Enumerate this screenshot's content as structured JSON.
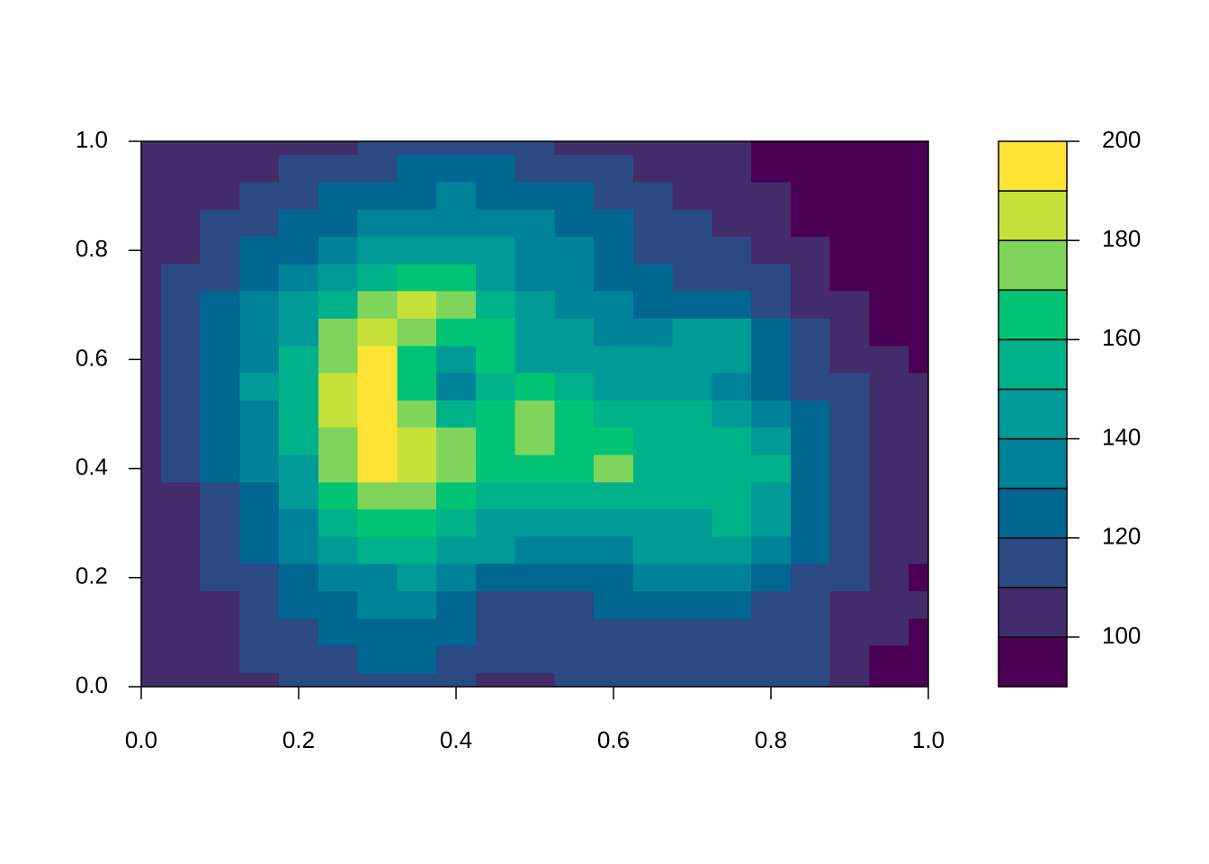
{
  "chart_data": {
    "type": "filled-contour",
    "x": [
      0,
      0.05,
      0.1,
      0.15,
      0.2,
      0.25,
      0.3,
      0.35,
      0.4,
      0.45,
      0.5,
      0.55,
      0.6,
      0.65,
      0.7,
      0.75,
      0.8,
      0.85,
      0.9,
      0.95,
      1
    ],
    "y": [
      1,
      0.95,
      0.9,
      0.85,
      0.8,
      0.75,
      0.7,
      0.65,
      0.6,
      0.55,
      0.5,
      0.45,
      0.4,
      0.35,
      0.3,
      0.25,
      0.2,
      0.15,
      0.1,
      0.05,
      0
    ],
    "z": [
      [
        105,
        105,
        105,
        105,
        105,
        108,
        112,
        115,
        118,
        115,
        112,
        105,
        105,
        105,
        105,
        105,
        95,
        95,
        95,
        95,
        95
      ],
      [
        105,
        105,
        105,
        105,
        115,
        115,
        118,
        122,
        125,
        122,
        118,
        115,
        112,
        108,
        105,
        105,
        95,
        95,
        95,
        95,
        95
      ],
      [
        105,
        105,
        105,
        112,
        118,
        122,
        125,
        128,
        130,
        128,
        125,
        120,
        115,
        112,
        108,
        105,
        105,
        95,
        95,
        95,
        95
      ],
      [
        105,
        105,
        112,
        118,
        124,
        128,
        132,
        135,
        135,
        134,
        130,
        126,
        120,
        115,
        112,
        108,
        105,
        95,
        95,
        95,
        95
      ],
      [
        105,
        108,
        115,
        122,
        128,
        134,
        140,
        145,
        145,
        140,
        135,
        130,
        125,
        118,
        115,
        112,
        108,
        102,
        95,
        95,
        95
      ],
      [
        105,
        112,
        118,
        126,
        134,
        145,
        155,
        165,
        162,
        145,
        138,
        135,
        128,
        122,
        118,
        115,
        112,
        105,
        95,
        95,
        95
      ],
      [
        105,
        115,
        122,
        130,
        140,
        155,
        175,
        185,
        178,
        155,
        140,
        138,
        130,
        125,
        122,
        120,
        115,
        108,
        100,
        95,
        95
      ],
      [
        108,
        115,
        125,
        135,
        148,
        170,
        185,
        175,
        165,
        160,
        145,
        140,
        135,
        135,
        140,
        140,
        125,
        115,
        105,
        95,
        95
      ],
      [
        108,
        118,
        128,
        138,
        155,
        178,
        195,
        165,
        145,
        160,
        145,
        142,
        140,
        140,
        145,
        140,
        128,
        118,
        108,
        100,
        95
      ],
      [
        105,
        118,
        128,
        140,
        158,
        180,
        195,
        165,
        138,
        150,
        162,
        150,
        145,
        145,
        142,
        138,
        128,
        118,
        112,
        105,
        100
      ],
      [
        105,
        115,
        128,
        138,
        155,
        182,
        195,
        175,
        155,
        165,
        172,
        162,
        158,
        155,
        152,
        148,
        135,
        122,
        112,
        105,
        105
      ],
      [
        102,
        112,
        125,
        135,
        152,
        178,
        192,
        182,
        172,
        168,
        175,
        165,
        165,
        155,
        152,
        150,
        140,
        125,
        112,
        105,
        105
      ],
      [
        100,
        110,
        122,
        132,
        148,
        172,
        190,
        185,
        172,
        165,
        165,
        160,
        172,
        155,
        155,
        155,
        152,
        128,
        112,
        105,
        105
      ],
      [
        100,
        108,
        118,
        128,
        142,
        162,
        172,
        178,
        165,
        158,
        155,
        152,
        152,
        152,
        152,
        152,
        148,
        125,
        112,
        105,
        105
      ],
      [
        100,
        105,
        115,
        125,
        135,
        152,
        162,
        165,
        158,
        148,
        145,
        145,
        145,
        145,
        148,
        150,
        145,
        125,
        112,
        105,
        105
      ],
      [
        100,
        105,
        112,
        122,
        130,
        140,
        150,
        152,
        148,
        140,
        135,
        135,
        138,
        140,
        140,
        140,
        135,
        122,
        112,
        105,
        105
      ],
      [
        100,
        105,
        110,
        118,
        125,
        132,
        138,
        142,
        135,
        128,
        125,
        125,
        128,
        130,
        130,
        130,
        125,
        118,
        110,
        105,
        95
      ],
      [
        100,
        102,
        105,
        115,
        120,
        125,
        130,
        132,
        125,
        118,
        118,
        118,
        120,
        122,
        122,
        122,
        118,
        115,
        108,
        105,
        105
      ],
      [
        100,
        102,
        105,
        112,
        115,
        120,
        125,
        128,
        120,
        115,
        115,
        112,
        112,
        115,
        115,
        118,
        118,
        112,
        108,
        102,
        95
      ],
      [
        100,
        100,
        105,
        110,
        112,
        115,
        120,
        120,
        118,
        112,
        110,
        112,
        110,
        110,
        112,
        112,
        115,
        112,
        105,
        95,
        95
      ],
      [
        100,
        100,
        105,
        108,
        110,
        112,
        118,
        118,
        115,
        108,
        105,
        110,
        110,
        110,
        110,
        110,
        112,
        110,
        100,
        95,
        95
      ]
    ],
    "levels": [
      90,
      100,
      110,
      120,
      130,
      140,
      150,
      160,
      170,
      180,
      190,
      200
    ],
    "colors": [
      "#4B0055",
      "#422C6C",
      "#2B4A83",
      "#006791",
      "#008399",
      "#009B96",
      "#00B28A",
      "#00C474",
      "#7FD45C",
      "#C6E03A",
      "#FDE333"
    ],
    "xlim": [
      0,
      1
    ],
    "ylim": [
      0,
      1
    ],
    "xticks": [
      {
        "value": 0,
        "label": "0.0"
      },
      0.2,
      0.4,
      0.6,
      0.8,
      {
        "value": 1,
        "label": "1.0"
      }
    ],
    "yticks": [
      {
        "value": 0,
        "label": "0.0"
      },
      0.2,
      0.4,
      0.6,
      0.8,
      {
        "value": 1,
        "label": "1.0"
      }
    ],
    "zticks": [
      100,
      120,
      140,
      160,
      180,
      200
    ]
  }
}
